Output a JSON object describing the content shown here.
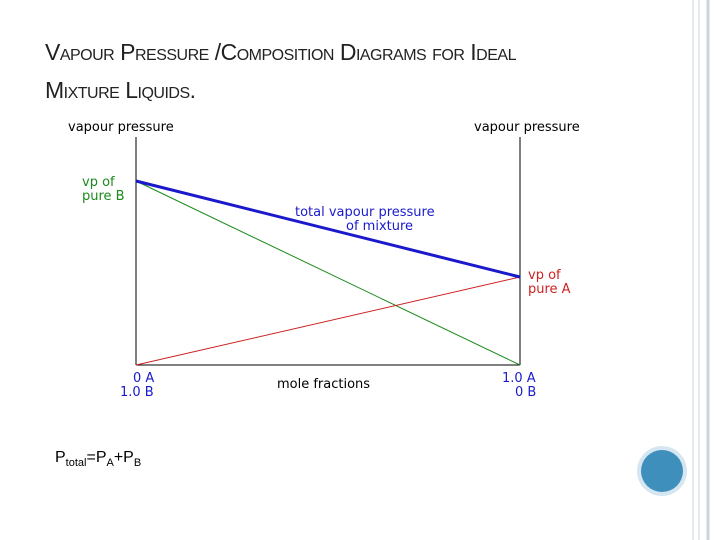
{
  "header": {
    "title_lines": [
      "Vapour Pressure /Composition Diagrams for Ideal",
      "Mixture Liquids."
    ]
  },
  "diagram": {
    "left_axis_label": "vapour pressure",
    "right_axis_label": "vapour pressure",
    "pure_b_label": [
      "vp of",
      "pure B"
    ],
    "total_label": [
      "total vapour pressure",
      "of mixture"
    ],
    "pure_a_label": [
      "vp of",
      "pure A"
    ],
    "left_bottom_label": [
      "0 A",
      "1.0 B"
    ],
    "x_axis_label": "mole fractions",
    "right_bottom_label": [
      "1.0 A",
      "0 B"
    ]
  },
  "formula": [
    "P",
    "total",
    "=P",
    "A",
    "+P",
    "B"
  ]
}
